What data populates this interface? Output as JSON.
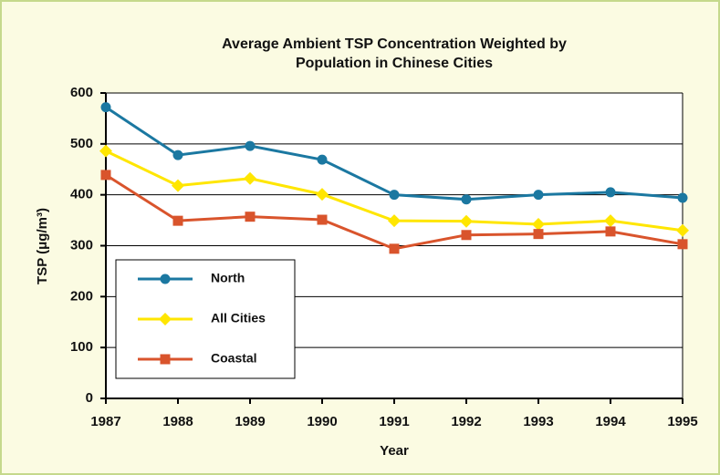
{
  "chart_data": {
    "type": "line",
    "title": "Average Ambient TSP Concentration Weighted by Population in Chinese Cities",
    "x_label": "Year",
    "y_label": "TSP (μg/m³)",
    "categories": [
      "1987",
      "1988",
      "1989",
      "1990",
      "1991",
      "1992",
      "1993",
      "1994",
      "1995"
    ],
    "series": [
      {
        "name": "North",
        "color": "#1b78a1",
        "marker": "circle",
        "values": [
          572,
          478,
          496,
          469,
          400,
          391,
          400,
          405,
          394
        ]
      },
      {
        "name": "All Cities",
        "color": "#ffe600",
        "marker": "diamond",
        "values": [
          486,
          418,
          432,
          401,
          349,
          348,
          342,
          349,
          330
        ]
      },
      {
        "name": "Coastal",
        "color": "#d9542c",
        "marker": "square",
        "values": [
          439,
          349,
          357,
          351,
          294,
          321,
          323,
          328,
          303
        ]
      }
    ],
    "ylim": [
      0,
      600
    ],
    "yticks": [
      0,
      100,
      200,
      300,
      400,
      500,
      600
    ],
    "grid": true,
    "legend": "lower left"
  }
}
